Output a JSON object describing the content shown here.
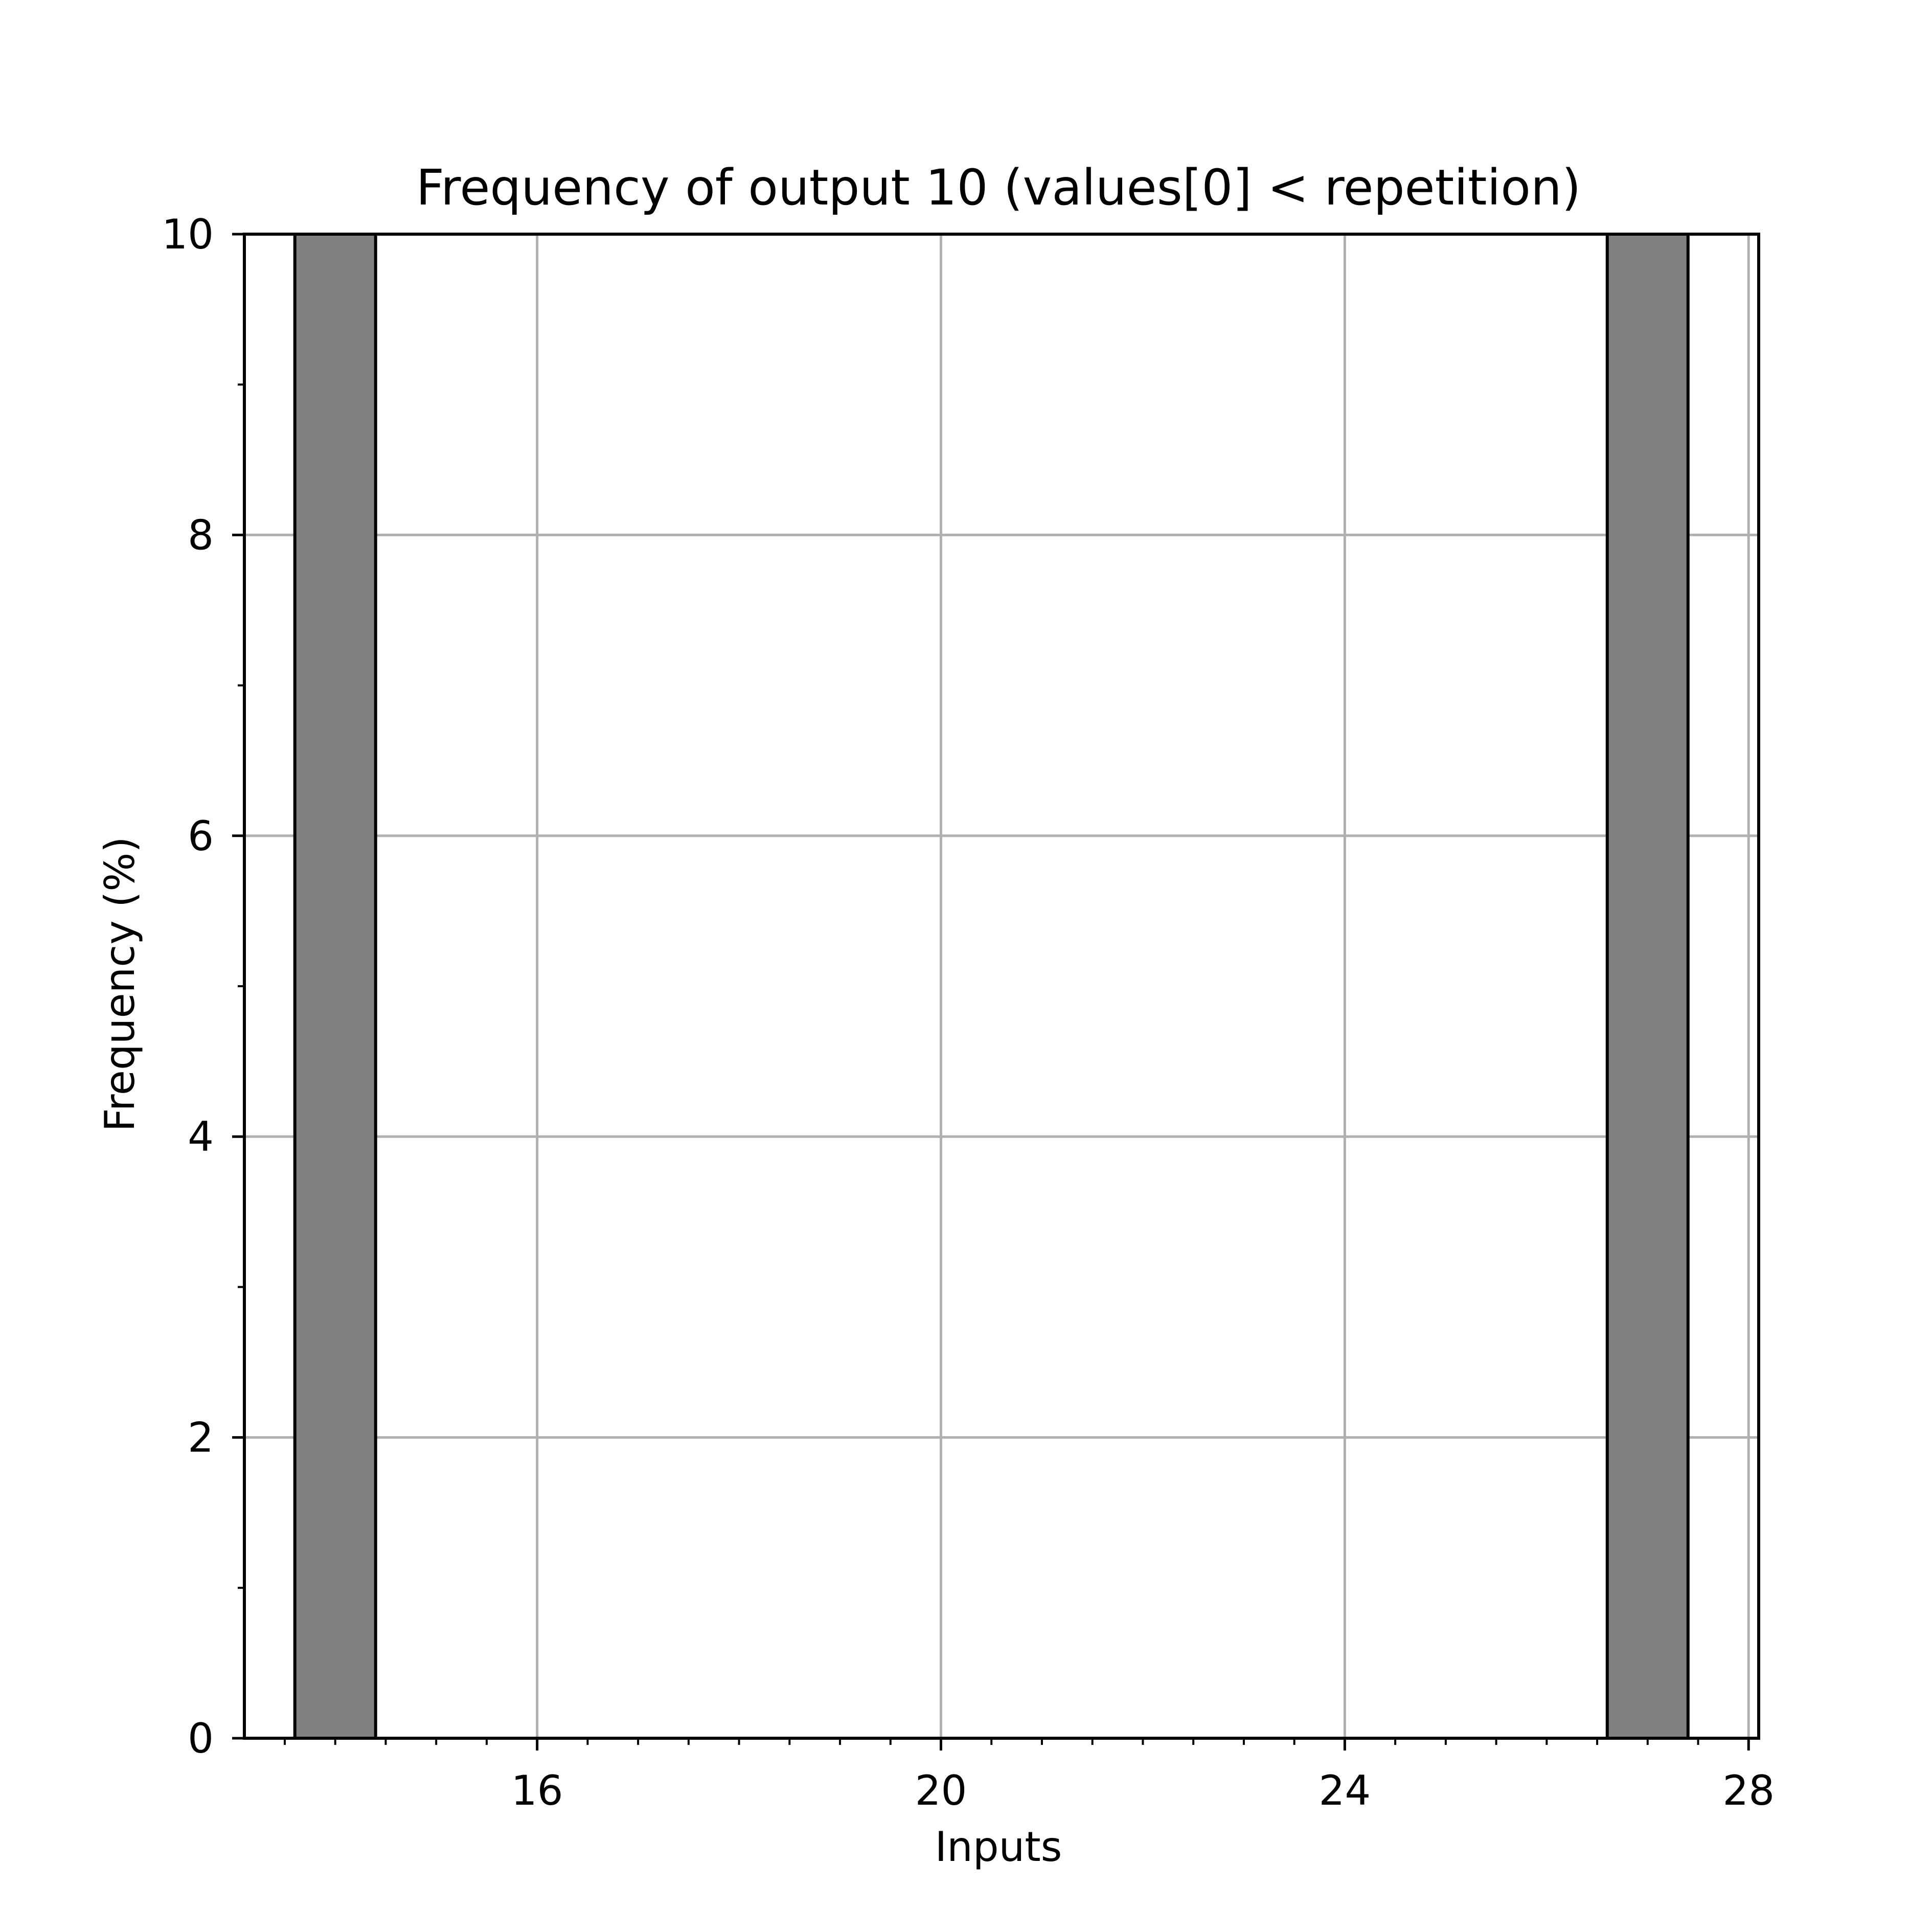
{
  "chart_data": {
    "type": "bar",
    "title": "Frequency of output 10 (values[0] < repetition)",
    "xlabel": "Inputs",
    "ylabel": "Frequency (%)",
    "xlim": [
      13.1,
      28.1
    ],
    "ylim": [
      0,
      10
    ],
    "x_ticks": [
      16,
      20,
      24,
      28
    ],
    "x_minor_step": 0.5,
    "y_ticks": [
      0,
      2,
      4,
      6,
      8,
      10
    ],
    "y_minor_step": 1,
    "grid": true,
    "legend": "none",
    "series": [
      {
        "bars": [
          {
            "x_start": 13.6,
            "x_end": 14.4,
            "value": 10
          },
          {
            "x_start": 26.6,
            "x_end": 27.4,
            "value": 10
          }
        ]
      }
    ],
    "colors": {
      "bar_fill": "#808080",
      "bar_edge": "#000000",
      "grid": "#b0b0b0",
      "axis": "#000000"
    }
  }
}
